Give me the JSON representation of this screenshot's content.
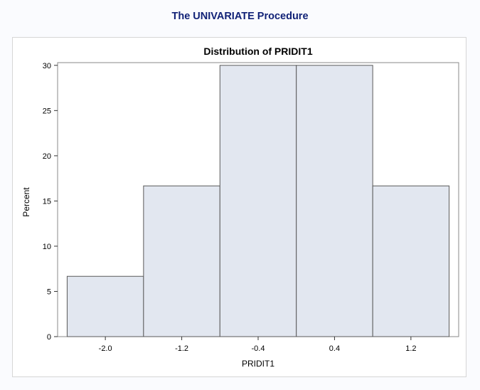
{
  "page": {
    "procedure_title": "The UNIVARIATE Procedure"
  },
  "colors": {
    "bar_fill": "#e2e7f0",
    "bar_stroke": "#5a5a5a",
    "procedure_title": "#112277"
  },
  "chart_data": {
    "type": "bar",
    "title": "Distribution of PRIDIT1",
    "xlabel": "PRIDIT1",
    "ylabel": "Percent",
    "bins": [
      {
        "midpoint": -2.0,
        "percent": 6.67
      },
      {
        "midpoint": -1.2,
        "percent": 16.67
      },
      {
        "midpoint": -0.4,
        "percent": 30.0
      },
      {
        "midpoint": 0.4,
        "percent": 30.0
      },
      {
        "midpoint": 1.2,
        "percent": 16.67
      }
    ],
    "bin_width": 0.8,
    "xticks": [
      "-2.0",
      "-1.2",
      "-0.4",
      "0.4",
      "1.2"
    ],
    "yticks": [
      0,
      5,
      10,
      15,
      20,
      25,
      30
    ],
    "ylim": [
      0,
      30.3
    ],
    "xlim": [
      -2.5,
      1.7
    ],
    "grid": false,
    "legend": "none"
  }
}
